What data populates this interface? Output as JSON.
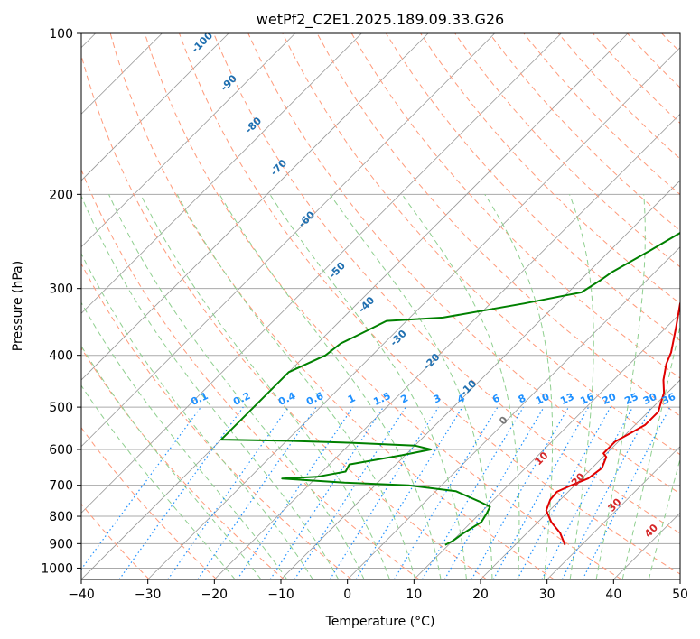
{
  "chart_data": {
    "type": "line",
    "title": "wetPf2_C2E1.2025.189.09.33.G26",
    "xlabel": "Temperature (°C)",
    "ylabel": "Pressure (hPa)",
    "xlim": [
      -40,
      50
    ],
    "ylim": [
      1050,
      100
    ],
    "y_scale": "log",
    "grid": true,
    "x_ticks": [
      "−40",
      "−30",
      "−20",
      "−10",
      "0",
      "10",
      "20",
      "30",
      "40",
      "50"
    ],
    "y_ticks": [
      "100",
      "200",
      "300",
      "400",
      "500",
      "600",
      "700",
      "800",
      "900",
      "1000"
    ],
    "x_tick_values": [
      -40,
      -30,
      -20,
      -10,
      0,
      10,
      20,
      30,
      40,
      50
    ],
    "y_tick_values": [
      100,
      200,
      300,
      400,
      500,
      600,
      700,
      800,
      900,
      1000
    ],
    "skew_deg": 45,
    "colors": {
      "temperature": "#e00000",
      "dewpoint": "#008000",
      "dry_adiabat": "#ff9a7a",
      "moist_adiabat": "#8fcf8f",
      "mixing_ratio": "#1e90ff",
      "isotherm": "#999999",
      "isobar": "#aaaaaa",
      "dry_label": "#1f6fb0",
      "moist_label": "#d62728"
    },
    "mixing_ratio_labels": [
      "0.1",
      "0.2",
      "0.4",
      "0.6",
      "1",
      "1.5",
      "2",
      "3",
      "4",
      "6",
      "8",
      "10",
      "13",
      "16",
      "20",
      "25",
      "30",
      "36"
    ],
    "mixing_ratio_values": [
      0.1,
      0.2,
      0.4,
      0.6,
      1,
      1.5,
      2,
      3,
      4,
      6,
      8,
      10,
      13,
      16,
      20,
      25,
      30,
      36
    ],
    "dry_adiabat_labels": [
      {
        "text": "-100",
        "x": -21.5,
        "p": 105
      },
      {
        "text": "-90",
        "x": -17.5,
        "p": 125
      },
      {
        "text": "-80",
        "x": -13.8,
        "p": 150
      },
      {
        "text": "-70",
        "x": -10.0,
        "p": 180
      },
      {
        "text": "-60",
        "x": -5.8,
        "p": 225
      },
      {
        "text": "-50",
        "x": -1.2,
        "p": 280
      },
      {
        "text": "-40",
        "x": 3.2,
        "p": 325
      },
      {
        "text": "-30",
        "x": 8.0,
        "p": 375
      },
      {
        "text": "-20",
        "x": 13.0,
        "p": 415
      },
      {
        "text": "-10",
        "x": 18.5,
        "p": 465
      }
    ],
    "moist_adiabat_labels": [
      {
        "text": "0",
        "x": 23.8,
        "p": 535
      },
      {
        "text": "10",
        "x": 29.5,
        "p": 630
      },
      {
        "text": "20",
        "x": 35.0,
        "p": 690
      },
      {
        "text": "30",
        "x": 40.5,
        "p": 770
      },
      {
        "text": "40",
        "x": 46.0,
        "p": 860
      }
    ],
    "series": [
      {
        "points": [
          [
            27.5,
            905
          ],
          [
            25,
            860
          ],
          [
            22,
            820
          ],
          [
            19.5,
            780
          ],
          [
            18.5,
            745
          ],
          [
            18.3,
            720
          ],
          [
            19.5,
            700
          ],
          [
            21,
            680
          ],
          [
            21.5,
            650
          ],
          [
            20.5,
            620
          ],
          [
            19.5,
            610
          ],
          [
            19.5,
            580
          ],
          [
            20.5,
            560
          ],
          [
            21.5,
            540
          ],
          [
            21.5,
            510
          ],
          [
            20.5,
            490
          ],
          [
            19.5,
            470
          ],
          [
            17.5,
            445
          ],
          [
            15.5,
            415
          ],
          [
            14.5,
            395
          ],
          [
            11.5,
            355
          ],
          [
            8.5,
            320
          ],
          [
            6,
            285
          ],
          [
            3.5,
            258
          ],
          [
            2.3,
            235
          ],
          [
            2.3,
            220
          ],
          [
            2.5,
            200
          ],
          [
            1.5,
            185
          ],
          [
            0.5,
            165
          ],
          [
            0.5,
            150
          ],
          [
            1.5,
            135
          ],
          [
            2.5,
            125
          ],
          [
            3,
            115
          ],
          [
            3.8,
            105
          ],
          [
            4.5,
            100
          ]
        ]
      },
      {
        "points": [
          [
            9.5,
            905
          ],
          [
            10,
            890
          ],
          [
            10.5,
            860
          ],
          [
            11.5,
            820
          ],
          [
            11,
            790
          ],
          [
            10.5,
            768
          ],
          [
            8,
            750
          ],
          [
            3,
            718
          ],
          [
            -5,
            700
          ],
          [
            -15,
            692
          ],
          [
            -25,
            680
          ],
          [
            -20,
            675
          ],
          [
            -16.5,
            660
          ],
          [
            -17,
            640
          ],
          [
            -10.5,
            615
          ],
          [
            -7,
            600
          ],
          [
            -10,
            590
          ],
          [
            -20,
            583
          ],
          [
            -30,
            578
          ],
          [
            -40,
            575
          ],
          [
            -40,
            430
          ],
          [
            -37,
            400
          ],
          [
            -36.5,
            380
          ],
          [
            -35,
            365
          ],
          [
            -33,
            345
          ],
          [
            -25,
            340
          ],
          [
            -15,
            320
          ],
          [
            -8,
            305
          ],
          [
            -7,
            290
          ],
          [
            -6.5,
            280
          ],
          [
            -4,
            255
          ],
          [
            -2,
            235
          ],
          [
            -1.5,
            220
          ],
          [
            -3,
            210
          ],
          [
            -3,
            200
          ],
          [
            -2,
            180
          ],
          [
            -2,
            165
          ],
          [
            -1.5,
            150
          ],
          [
            -1,
            130
          ],
          [
            0.5,
            115
          ],
          [
            2,
            105
          ],
          [
            2.5,
            100
          ]
        ]
      }
    ]
  }
}
